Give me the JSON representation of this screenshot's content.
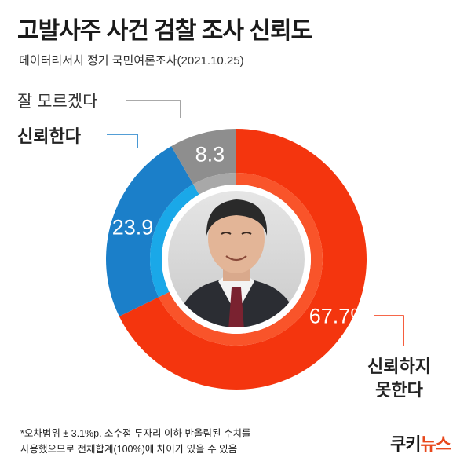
{
  "title": "고발사주 사건 검찰 조사 신뢰도",
  "subtitle": "데이터리서치 정기 국민여론조사(2021.10.25)",
  "chart_data": {
    "type": "pie",
    "style": "donut",
    "slices": [
      {
        "label": "신뢰하지 못한다",
        "label_line1": "신뢰하지",
        "label_line2": "못한다",
        "value": 67.7,
        "display": "67.7%",
        "color": "#f4350e"
      },
      {
        "label": "신뢰한다",
        "value": 23.9,
        "display": "23.9",
        "color": "#1b7fc9"
      },
      {
        "label": "잘 모르겠다",
        "value": 8.3,
        "display": "8.3",
        "color": "#8e8e8e"
      }
    ],
    "inner_ring_colors": [
      "#f9542a",
      "#1aa8e8",
      "#a8a8a8"
    ]
  },
  "footnote": {
    "line1": "*오차범위 ± 3.1%p. 소수점 두자리 이하 반올림된 수치를",
    "line2": "사용했으므로 전체합계(100%)에 차이가 있을 수 있음"
  },
  "brand": {
    "part1": "쿠키",
    "part2": "뉴스"
  }
}
